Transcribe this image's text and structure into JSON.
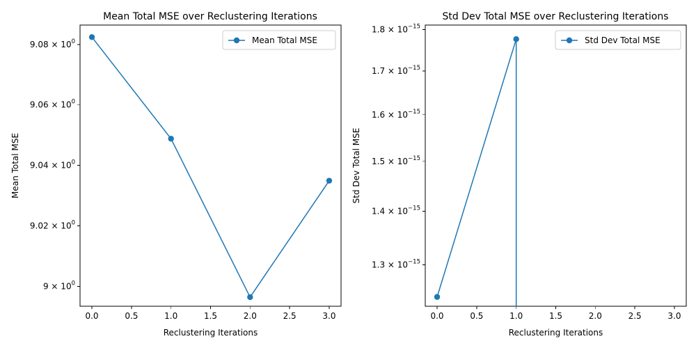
{
  "chart_data": [
    {
      "type": "line",
      "title": "Mean Total MSE over Reclustering Iterations",
      "xlabel": "Reclustering Iterations",
      "ylabel": "Mean Total MSE",
      "yscale": "log",
      "grid": false,
      "legend_position": "top-right",
      "x_ticks": [
        "0.0",
        "0.5",
        "1.0",
        "1.5",
        "2.0",
        "2.5",
        "3.0"
      ],
      "x_tick_values": [
        0,
        0.5,
        1,
        1.5,
        2,
        2.5,
        3
      ],
      "y_ticks": [
        {
          "value": 9.0,
          "mantissa": "9",
          "base": "10",
          "exp": "0"
        },
        {
          "value": 9.02,
          "mantissa": "9.02",
          "base": "10",
          "exp": "0"
        },
        {
          "value": 9.04,
          "mantissa": "9.04",
          "base": "10",
          "exp": "0"
        },
        {
          "value": 9.06,
          "mantissa": "9.06",
          "base": "10",
          "exp": "0"
        },
        {
          "value": 9.08,
          "mantissa": "9.08",
          "base": "10",
          "exp": "0"
        }
      ],
      "xlim": [
        -0.15,
        3.15
      ],
      "ylim": [
        8.9935,
        9.0865
      ],
      "series": [
        {
          "name": "Mean Total MSE",
          "color": "#1f77b4",
          "marker": "circle",
          "x": [
            0,
            1,
            2,
            3
          ],
          "y": [
            9.0825,
            9.0488,
            8.9965,
            9.0349
          ]
        }
      ]
    },
    {
      "type": "line",
      "title": "Std Dev Total MSE over Reclustering Iterations",
      "xlabel": "Reclustering Iterations",
      "ylabel": "Std Dev Total MSE",
      "yscale": "log",
      "grid": false,
      "legend_position": "top-right",
      "x_ticks": [
        "0.0",
        "0.5",
        "1.0",
        "1.5",
        "2.0",
        "2.5",
        "3.0"
      ],
      "x_tick_values": [
        0,
        0.5,
        1,
        1.5,
        2,
        2.5,
        3
      ],
      "y_ticks": [
        {
          "value": 1.3e-15,
          "mantissa": "1.3",
          "base": "10",
          "exp": "−15"
        },
        {
          "value": 1.4e-15,
          "mantissa": "1.4",
          "base": "10",
          "exp": "−15"
        },
        {
          "value": 1.5e-15,
          "mantissa": "1.5",
          "base": "10",
          "exp": "−15"
        },
        {
          "value": 1.6e-15,
          "mantissa": "1.6",
          "base": "10",
          "exp": "−15"
        },
        {
          "value": 1.7e-15,
          "mantissa": "1.7",
          "base": "10",
          "exp": "−15"
        },
        {
          "value": 1.8e-15,
          "mantissa": "1.8",
          "base": "10",
          "exp": "−15"
        }
      ],
      "xlim": [
        -0.15,
        3.15
      ],
      "ylim": [
        1.2275e-15,
        1.8113e-15
      ],
      "series": [
        {
          "name": "Std Dev Total MSE",
          "color": "#1f77b4",
          "marker": "circle",
          "x": [
            0,
            1,
            2,
            3
          ],
          "y": [
            1.2434e-15,
            1.7764e-15,
            0,
            0
          ]
        }
      ]
    }
  ]
}
